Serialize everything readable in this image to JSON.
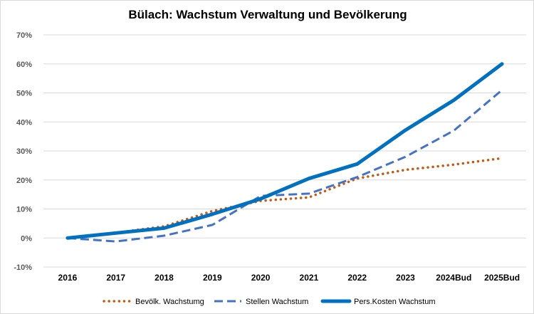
{
  "chart_data": {
    "type": "line",
    "title": "Bülach: Wachstum Verwaltung und Bevölkerung",
    "xlabel": "",
    "ylabel": "",
    "categories": [
      "2016",
      "2017",
      "2018",
      "2019",
      "2020",
      "2021",
      "2022",
      "2023",
      "2024Bud",
      "2025Bud"
    ],
    "yticks": [
      "-10%",
      "0%",
      "10%",
      "20%",
      "30%",
      "40%",
      "50%",
      "60%",
      "70%"
    ],
    "ylim": [
      -10,
      70
    ],
    "grid": true,
    "legend_position": "bottom",
    "series": [
      {
        "name": "Bevölk. Wachstumg",
        "style": "dotted",
        "color": "#c55a11",
        "values": [
          0,
          1.8,
          4.0,
          9.3,
          12.8,
          14.0,
          20.5,
          23.5,
          25.3,
          27.5
        ]
      },
      {
        "name": "Stellen Wachstum",
        "style": "dashed",
        "color": "#4472c4",
        "values": [
          0,
          -1.2,
          0.8,
          4.5,
          14.5,
          15.3,
          21.0,
          28.0,
          37.0,
          51.0
        ]
      },
      {
        "name": "Pers.Kosten Wachstum",
        "style": "solid",
        "color": "#0070c0",
        "values": [
          0,
          1.7,
          3.4,
          8.2,
          13.5,
          20.5,
          25.5,
          37.2,
          47.5,
          60.0
        ]
      }
    ]
  }
}
